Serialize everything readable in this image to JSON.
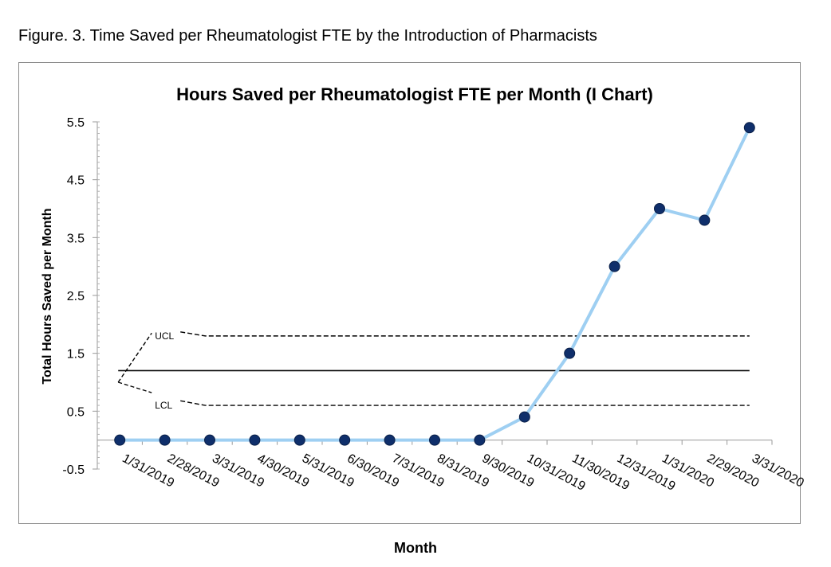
{
  "figure_caption": "Figure. 3.  Time Saved per Rheumatologist FTE by the Introduction of Pharmacists",
  "chart_data": {
    "type": "line",
    "title": "Hours Saved per Rheumatologist FTE per Month (I Chart)",
    "xlabel": "Month",
    "ylabel": "Total Hours Saved per Month",
    "ylim": [
      -0.5,
      5.5
    ],
    "y_ticks": [
      -0.5,
      0.5,
      1.5,
      2.5,
      3.5,
      4.5,
      5.5
    ],
    "y_tick_labels": [
      "-0.5",
      "0.5",
      "1.5",
      "2.5",
      "3.5",
      "4.5",
      "5.5"
    ],
    "categories": [
      "1/31/2019",
      "2/28/2019",
      "3/31/2019",
      "4/30/2019",
      "5/31/2019",
      "6/30/2019",
      "7/31/2019",
      "8/31/2019",
      "9/30/2019",
      "10/31/2019",
      "11/30/2019",
      "12/31/2019",
      "1/31/2020",
      "2/29/2020",
      "3/31/2020"
    ],
    "series": [
      {
        "values": [
          0,
          0,
          0,
          0,
          0,
          0,
          0,
          0,
          0,
          0.4,
          1.5,
          3.0,
          4.0,
          3.8,
          5.4
        ],
        "line_color": "#9ecff2",
        "marker_color": "#0f2f6b"
      }
    ],
    "control_limits": {
      "center_line": 1.2,
      "ucl": {
        "label": "UCL",
        "value": 1.8
      },
      "lcl": {
        "label": "LCL",
        "value": 0.6
      }
    },
    "grid": false,
    "legend": "none"
  }
}
